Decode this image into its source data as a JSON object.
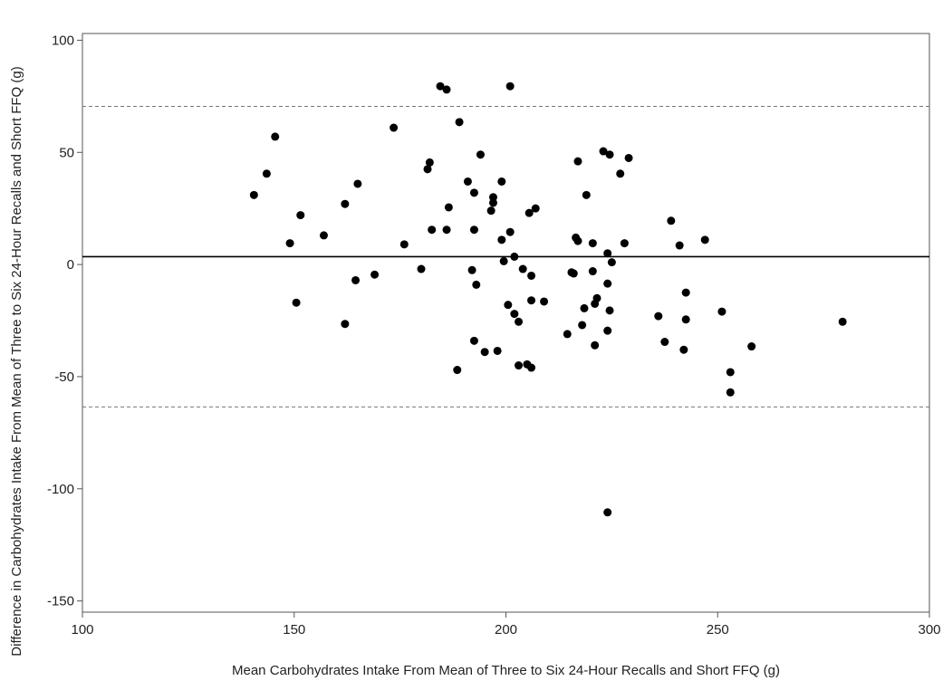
{
  "chart_data": {
    "type": "scatter",
    "xlabel": "Mean Carbohydrates Intake From Mean of Three to Six 24-Hour Recalls and Short FFQ (g)",
    "ylabel": "Difference in Carbohydrates Intake From Mean of Three to Six 24-Hour Recalls and Short FFQ (g)",
    "xlim": [
      100,
      300
    ],
    "ylim": [
      -155,
      103
    ],
    "xticks": [
      "100",
      "150",
      "200",
      "250",
      "300"
    ],
    "yticks": [
      "100",
      "50",
      "0",
      "-50",
      "-100",
      "-150"
    ],
    "grid": false,
    "reference_lines": [
      {
        "y": 3.5,
        "style": "solid"
      },
      {
        "y": 70.5,
        "style": "dashed"
      },
      {
        "y": -63.5,
        "style": "dashed"
      }
    ],
    "series": [
      {
        "marker": "filled-circle",
        "color": "#000000",
        "points": [
          [
            140.5,
            31
          ],
          [
            143.5,
            40.5
          ],
          [
            145.5,
            57
          ],
          [
            149,
            9.5
          ],
          [
            150.5,
            -17
          ],
          [
            151.5,
            22
          ],
          [
            157,
            13
          ],
          [
            162,
            27
          ],
          [
            162,
            -26.5
          ],
          [
            164.5,
            -7
          ],
          [
            165,
            36
          ],
          [
            169,
            -4.5
          ],
          [
            173.5,
            61
          ],
          [
            176,
            9
          ],
          [
            180,
            -2
          ],
          [
            181.5,
            42.5
          ],
          [
            182,
            45.5
          ],
          [
            182.5,
            15.5
          ],
          [
            184.5,
            79.5
          ],
          [
            186,
            78
          ],
          [
            186,
            15.5
          ],
          [
            186.5,
            25.5
          ],
          [
            188.5,
            -47
          ],
          [
            189,
            63.5
          ],
          [
            191,
            37
          ],
          [
            192,
            -2.5
          ],
          [
            192.5,
            -34
          ],
          [
            192.5,
            15.5
          ],
          [
            192.5,
            32
          ],
          [
            193,
            -9
          ],
          [
            194,
            49
          ],
          [
            195,
            -39
          ],
          [
            196.5,
            24
          ],
          [
            197,
            30
          ],
          [
            197,
            27.5
          ],
          [
            198,
            -38.5
          ],
          [
            199,
            37
          ],
          [
            199,
            11
          ],
          [
            199.5,
            1.5
          ],
          [
            200.5,
            -18
          ],
          [
            201,
            14.5
          ],
          [
            201,
            79.5
          ],
          [
            202,
            3.5
          ],
          [
            202,
            -22
          ],
          [
            203,
            -25.5
          ],
          [
            203,
            -45
          ],
          [
            204,
            -2
          ],
          [
            205,
            -44.5
          ],
          [
            205.5,
            23
          ],
          [
            206,
            -16
          ],
          [
            206,
            -5
          ],
          [
            206,
            -46
          ],
          [
            207,
            25
          ],
          [
            209,
            -16.5
          ],
          [
            214.5,
            -31
          ],
          [
            215.5,
            -3.5
          ],
          [
            216,
            -4
          ],
          [
            216.5,
            12
          ],
          [
            217,
            46
          ],
          [
            217,
            10.5
          ],
          [
            218,
            -27
          ],
          [
            218.5,
            -19.5
          ],
          [
            219,
            31
          ],
          [
            220.5,
            -3
          ],
          [
            220.5,
            9.5
          ],
          [
            221,
            -36
          ],
          [
            221,
            -17.5
          ],
          [
            221.5,
            -15
          ],
          [
            223,
            50.5
          ],
          [
            224,
            5
          ],
          [
            224,
            -8.5
          ],
          [
            224,
            -29.5
          ],
          [
            224,
            -110.5
          ],
          [
            224.5,
            49
          ],
          [
            224.5,
            -20.5
          ],
          [
            225,
            1
          ],
          [
            227,
            40.5
          ],
          [
            228,
            9.5
          ],
          [
            229,
            47.5
          ],
          [
            236,
            -23
          ],
          [
            237.5,
            -34.5
          ],
          [
            239,
            19.5
          ],
          [
            241,
            8.5
          ],
          [
            242,
            -38
          ],
          [
            242.5,
            -12.5
          ],
          [
            242.5,
            -24.5
          ],
          [
            247,
            11
          ],
          [
            251,
            -21
          ],
          [
            253,
            -48
          ],
          [
            253,
            -57
          ],
          [
            258,
            -36.5
          ],
          [
            279.5,
            -25.5
          ]
        ]
      }
    ]
  }
}
